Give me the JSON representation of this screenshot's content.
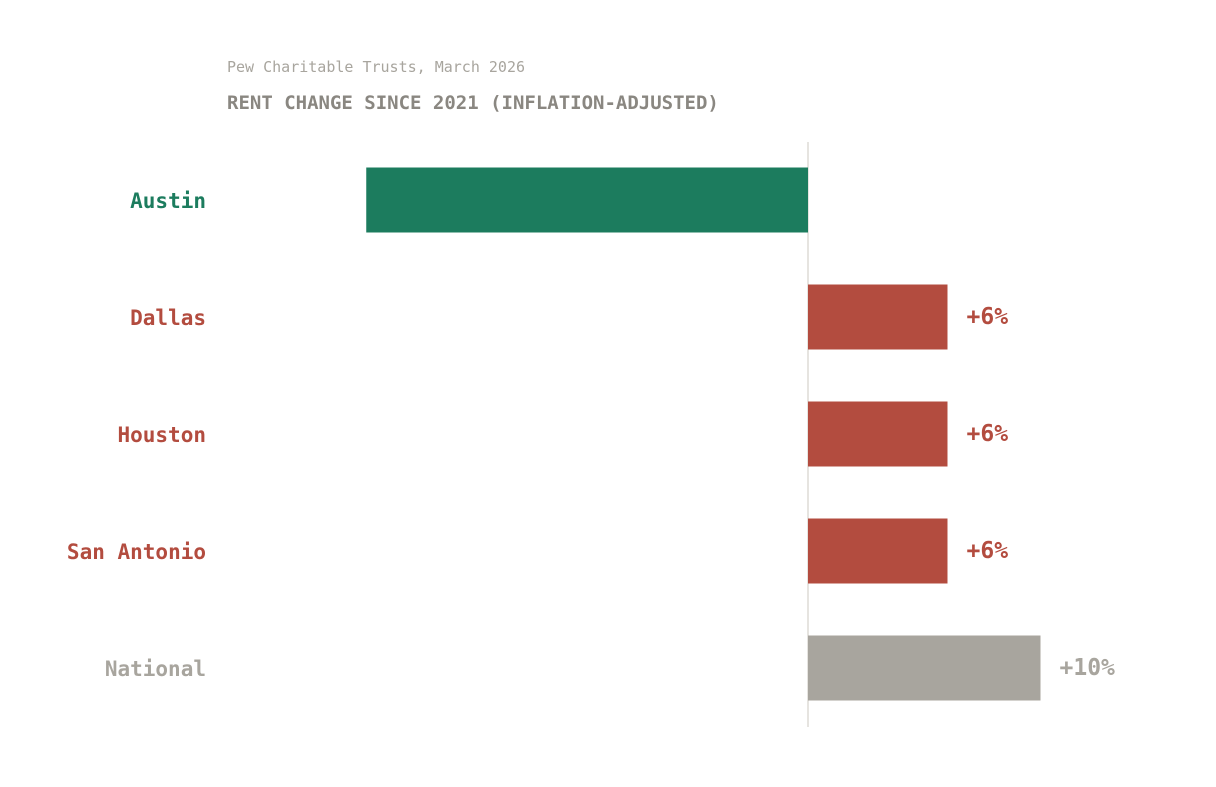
{
  "source": "Pew Charitable Trusts, March 2026",
  "title": "RENT CHANGE SINCE 2021 (INFLATION-ADJUSTED)",
  "chart_data": {
    "type": "bar",
    "orientation": "horizontal",
    "title": "RENT CHANGE SINCE 2021 (INFLATION-ADJUSTED)",
    "subtitle": "Pew Charitable Trusts, March 2026",
    "categories": [
      "Austin",
      "Dallas",
      "Houston",
      "San Antonio",
      "National"
    ],
    "values": [
      -19,
      6,
      6,
      6,
      10
    ],
    "value_labels": [
      "",
      "+6%",
      "+6%",
      "+6%",
      "+10%"
    ],
    "unit": "%",
    "colors": [
      "#1c7c5e",
      "#b34c3f",
      "#b34c3f",
      "#b34c3f",
      "#a8a59e"
    ],
    "grid": false
  }
}
